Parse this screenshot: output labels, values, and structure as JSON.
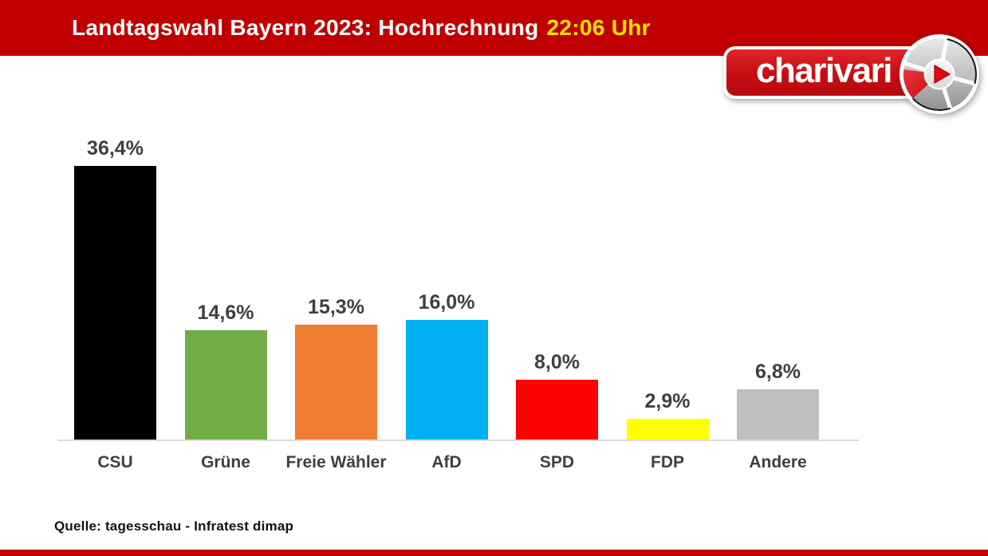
{
  "header": {
    "title": "Landtagswahl Bayern 2023: Hochrechnung",
    "time": "22:06 Uhr",
    "bg_color": "#C00000",
    "title_color": "#FFFFFF",
    "time_color": "#FFE100"
  },
  "logo": {
    "brand": "charivari",
    "box_color": "#C70D13",
    "play_icon_color": "#E30613"
  },
  "chart_data": {
    "type": "bar",
    "title": "Landtagswahl Bayern 2023: Hochrechnung 22:06 Uhr",
    "categories": [
      "CSU",
      "Grüne",
      "Freie Wähler",
      "AfD",
      "SPD",
      "FDP",
      "Andere"
    ],
    "values": [
      36.4,
      14.6,
      15.3,
      16.0,
      8.0,
      2.9,
      6.8
    ],
    "display_labels": [
      "36,4%",
      "14,6%",
      "15,3%",
      "16,0%",
      "8,0%",
      "2,9%",
      "6,8%"
    ],
    "colors": [
      "#000000",
      "#70AD47",
      "#ED7D31",
      "#00B0F0",
      "#FF0000",
      "#FFFF00",
      "#BFBFBF"
    ],
    "unit": "%",
    "xlabel": "",
    "ylabel": "",
    "ylim": [
      0,
      40
    ],
    "grid": false,
    "legend": false,
    "label_color": "#3F3F3F",
    "axis_line_color": "#DBDBDB"
  },
  "footer": {
    "source": "Quelle: tagesschau - Infratest dimap"
  }
}
